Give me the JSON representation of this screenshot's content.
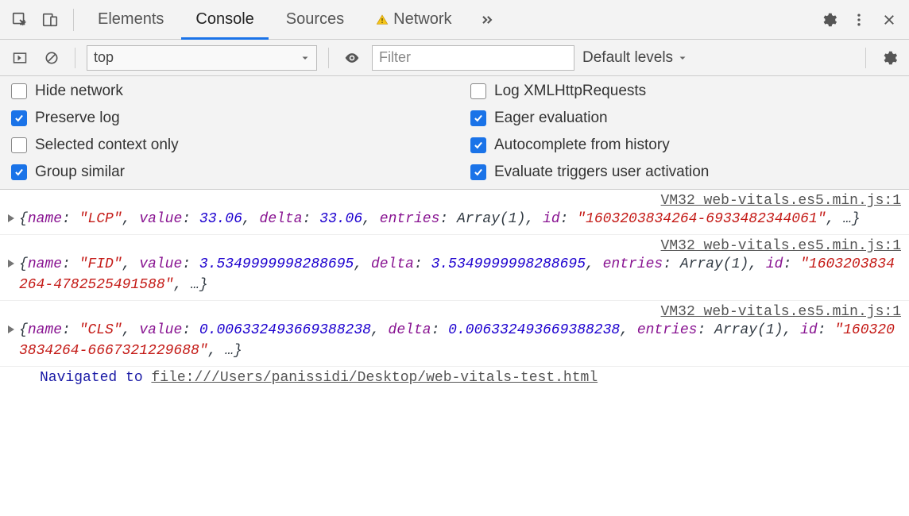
{
  "tabs": {
    "elements": "Elements",
    "console": "Console",
    "sources": "Sources",
    "network": "Network"
  },
  "toolbar": {
    "context": "top",
    "filter_placeholder": "Filter",
    "levels": "Default levels"
  },
  "settings": {
    "left": [
      {
        "label": "Hide network",
        "checked": false
      },
      {
        "label": "Preserve log",
        "checked": true
      },
      {
        "label": "Selected context only",
        "checked": false
      },
      {
        "label": "Group similar",
        "checked": true
      }
    ],
    "right": [
      {
        "label": "Log XMLHttpRequests",
        "checked": false
      },
      {
        "label": "Eager evaluation",
        "checked": true
      },
      {
        "label": "Autocomplete from history",
        "checked": true
      },
      {
        "label": "Evaluate triggers user activation",
        "checked": true
      }
    ]
  },
  "logs": [
    {
      "source": "VM32 web-vitals.es5.min.js:1",
      "name": "LCP",
      "value": "33.06",
      "delta": "33.06",
      "entries": "Array(1)",
      "id": "1603203834264-6933482344061"
    },
    {
      "source": "VM32 web-vitals.es5.min.js:1",
      "name": "FID",
      "value": "3.5349999998288695",
      "delta": "3.5349999998288695",
      "entries": "Array(1)",
      "id": "1603203834264-4782525491588"
    },
    {
      "source": "VM32 web-vitals.es5.min.js:1",
      "name": "CLS",
      "value": "0.006332493669388238",
      "delta": "0.006332493669388238",
      "entries": "Array(1)",
      "id": "1603203834264-6667321229688"
    }
  ],
  "navigation": {
    "prefix": "Navigated to ",
    "url": "file:///Users/panissidi/Desktop/web-vitals-test.html"
  },
  "colors": {
    "accent": "#1a73e8",
    "bg_panel": "#f3f3f3",
    "border": "#cccccc",
    "key": "#881391",
    "string": "#c41a16",
    "number": "#1c00cf"
  }
}
